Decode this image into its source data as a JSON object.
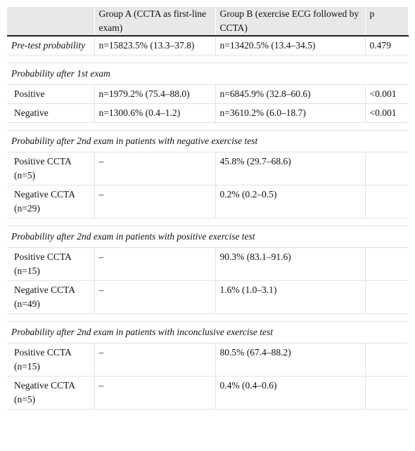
{
  "headers": [
    "",
    "Group A (CCTA as first-line exam)",
    "Group B (exercise ECG followed by CCTA)",
    "p"
  ],
  "rows": {
    "pretest": {
      "label": "Pre-test probability",
      "a": "n=15823.5% (13.3–37.8)",
      "b": "n=13420.5% (13.4–34.5)",
      "p": "0.479"
    },
    "sec1": "Probability after 1st exam",
    "pos1": {
      "label": "Positive",
      "a": "n=1979.2% (75.4–88.0)",
      "b": "n=6845.9% (32.8–60.6)",
      "p": "<0.001"
    },
    "neg1": {
      "label": "Negative",
      "a": "n=1300.6% (0.4–1.2)",
      "b": "n=3610.2% (6.0–18.7)",
      "p": "<0.001"
    },
    "sec2": "Probability after 2nd exam in patients with negative exercise test",
    "s2pos": {
      "label": "Positive CCTA (n=5)",
      "a": "–",
      "b": "45.8% (29.7–68.6)",
      "p": ""
    },
    "s2neg": {
      "label": "Negative CCTA (n=29)",
      "a": "–",
      "b": "0.2% (0.2–0.5)",
      "p": ""
    },
    "sec3": "Probability after 2nd exam in patients with positive exercise test",
    "s3pos": {
      "label": "Positive CCTA (n=15)",
      "a": "–",
      "b": "90.3% (83.1–91.6)",
      "p": ""
    },
    "s3neg": {
      "label": "Negative CCTA (n=49)",
      "a": "–",
      "b": "1.6% (1.0–3.1)",
      "p": ""
    },
    "sec4": "Probability after 2nd exam in patients with inconclusive exercise test",
    "s4pos": {
      "label": "Positive CCTA (n=15)",
      "a": "–",
      "b": "80.5% (67.4–88.2)",
      "p": ""
    },
    "s4neg": {
      "label": "Negative CCTA (n=5)",
      "a": "–",
      "b": "0.4% (0.4–0.6)",
      "p": ""
    }
  }
}
